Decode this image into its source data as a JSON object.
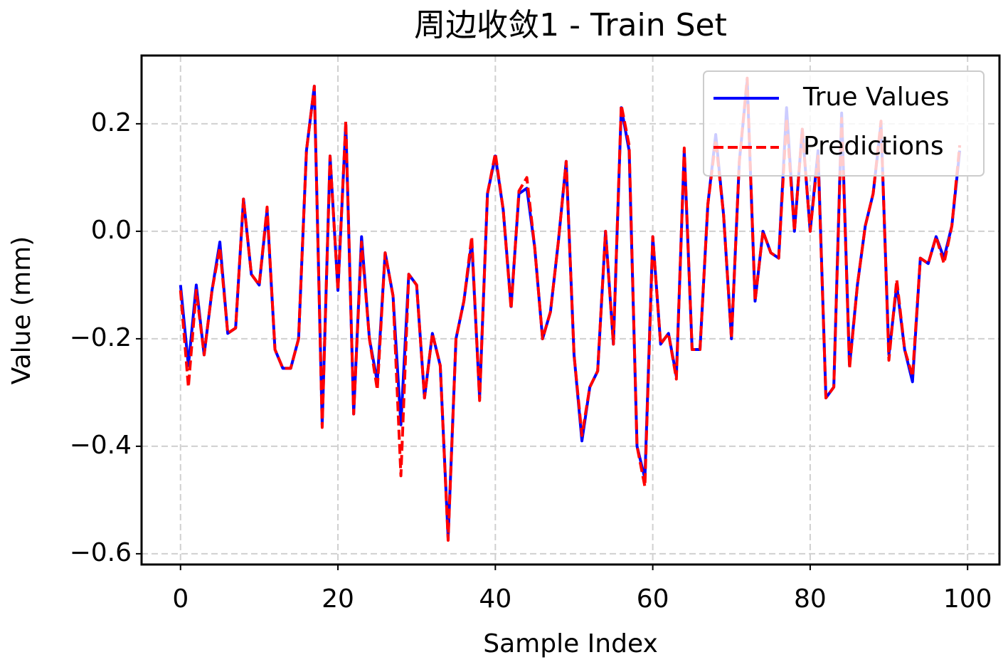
{
  "chart_data": {
    "type": "line",
    "title": "周边收敛1 - Train Set",
    "xlabel": "Sample Index",
    "ylabel": "Value (mm)",
    "x": [
      0,
      1,
      2,
      3,
      4,
      5,
      6,
      7,
      8,
      9,
      10,
      11,
      12,
      13,
      14,
      15,
      16,
      17,
      18,
      19,
      20,
      21,
      22,
      23,
      24,
      25,
      26,
      27,
      28,
      29,
      30,
      31,
      32,
      33,
      34,
      35,
      36,
      37,
      38,
      39,
      40,
      41,
      42,
      43,
      44,
      45,
      46,
      47,
      48,
      49,
      50,
      51,
      52,
      53,
      54,
      55,
      56,
      57,
      58,
      59,
      60,
      61,
      62,
      63,
      64,
      65,
      66,
      67,
      68,
      69,
      70,
      71,
      72,
      73,
      74,
      75,
      76,
      77,
      78,
      79,
      80,
      81,
      82,
      83,
      84,
      85,
      86,
      87,
      88,
      89,
      90,
      91,
      92,
      93,
      94,
      95,
      96,
      97,
      98,
      99
    ],
    "series": [
      {
        "name": "True Values",
        "color": "#0000ff",
        "dash": false,
        "values": [
          -0.1,
          -0.25,
          -0.1,
          -0.23,
          -0.11,
          -0.02,
          -0.19,
          -0.18,
          0.06,
          -0.08,
          -0.1,
          0.04,
          -0.22,
          -0.255,
          -0.255,
          -0.2,
          0.15,
          0.27,
          -0.36,
          0.14,
          -0.11,
          0.2,
          -0.34,
          -0.01,
          -0.2,
          -0.28,
          -0.04,
          -0.12,
          -0.36,
          -0.08,
          -0.1,
          -0.31,
          -0.19,
          -0.25,
          -0.57,
          -0.2,
          -0.13,
          -0.02,
          -0.31,
          0.07,
          0.14,
          0.04,
          -0.14,
          0.07,
          0.08,
          -0.03,
          -0.2,
          -0.15,
          -0.02,
          0.13,
          -0.23,
          -0.39,
          -0.29,
          -0.26,
          0.0,
          -0.21,
          0.23,
          0.15,
          -0.4,
          -0.46,
          -0.01,
          -0.21,
          -0.19,
          -0.27,
          0.15,
          -0.22,
          -0.22,
          0.05,
          0.18,
          0.03,
          -0.2,
          0.13,
          0.28,
          -0.13,
          0.0,
          -0.04,
          -0.05,
          0.23,
          0.0,
          0.19,
          0.0,
          0.15,
          -0.31,
          -0.29,
          0.22,
          -0.25,
          -0.1,
          0.01,
          0.07,
          0.2,
          -0.23,
          -0.1,
          -0.22,
          -0.28,
          -0.05,
          -0.06,
          -0.01,
          -0.05,
          0.01,
          0.15
        ]
      },
      {
        "name": "Predictions",
        "color": "#ff0000",
        "dash": true,
        "values": [
          -0.11,
          -0.29,
          -0.11,
          -0.23,
          -0.11,
          -0.03,
          -0.19,
          -0.18,
          0.06,
          -0.08,
          -0.1,
          0.045,
          -0.22,
          -0.255,
          -0.255,
          -0.2,
          0.15,
          0.27,
          -0.365,
          0.14,
          -0.11,
          0.205,
          -0.34,
          -0.02,
          -0.2,
          -0.295,
          -0.04,
          -0.12,
          -0.455,
          -0.08,
          -0.1,
          -0.31,
          -0.19,
          -0.25,
          -0.575,
          -0.2,
          -0.13,
          -0.01,
          -0.315,
          0.07,
          0.145,
          0.04,
          -0.145,
          0.075,
          0.1,
          -0.03,
          -0.2,
          -0.15,
          -0.02,
          0.13,
          -0.23,
          -0.38,
          -0.29,
          -0.26,
          0.0,
          -0.21,
          0.235,
          0.16,
          -0.4,
          -0.475,
          -0.01,
          -0.21,
          -0.19,
          -0.275,
          0.155,
          -0.22,
          -0.22,
          0.05,
          0.17,
          0.03,
          -0.2,
          0.13,
          0.285,
          -0.13,
          0.0,
          -0.04,
          -0.05,
          0.21,
          0.0,
          0.19,
          0.0,
          0.14,
          -0.31,
          -0.29,
          0.21,
          -0.255,
          -0.1,
          0.01,
          0.07,
          0.205,
          -0.24,
          -0.09,
          -0.22,
          -0.27,
          -0.05,
          -0.06,
          -0.01,
          -0.06,
          0.01,
          0.16
        ]
      }
    ],
    "xlim": [
      -4.95,
      104.05
    ],
    "ylim": [
      -0.62,
      0.327
    ],
    "xticks": [
      0,
      20,
      40,
      60,
      80,
      100
    ],
    "yticks": [
      {
        "value": -0.6,
        "label": "−0.6"
      },
      {
        "value": -0.4,
        "label": "−0.4"
      },
      {
        "value": -0.2,
        "label": "−0.2"
      },
      {
        "value": 0,
        "label": "0.0"
      },
      0.2
    ],
    "grid": true,
    "legend": "upper right"
  }
}
